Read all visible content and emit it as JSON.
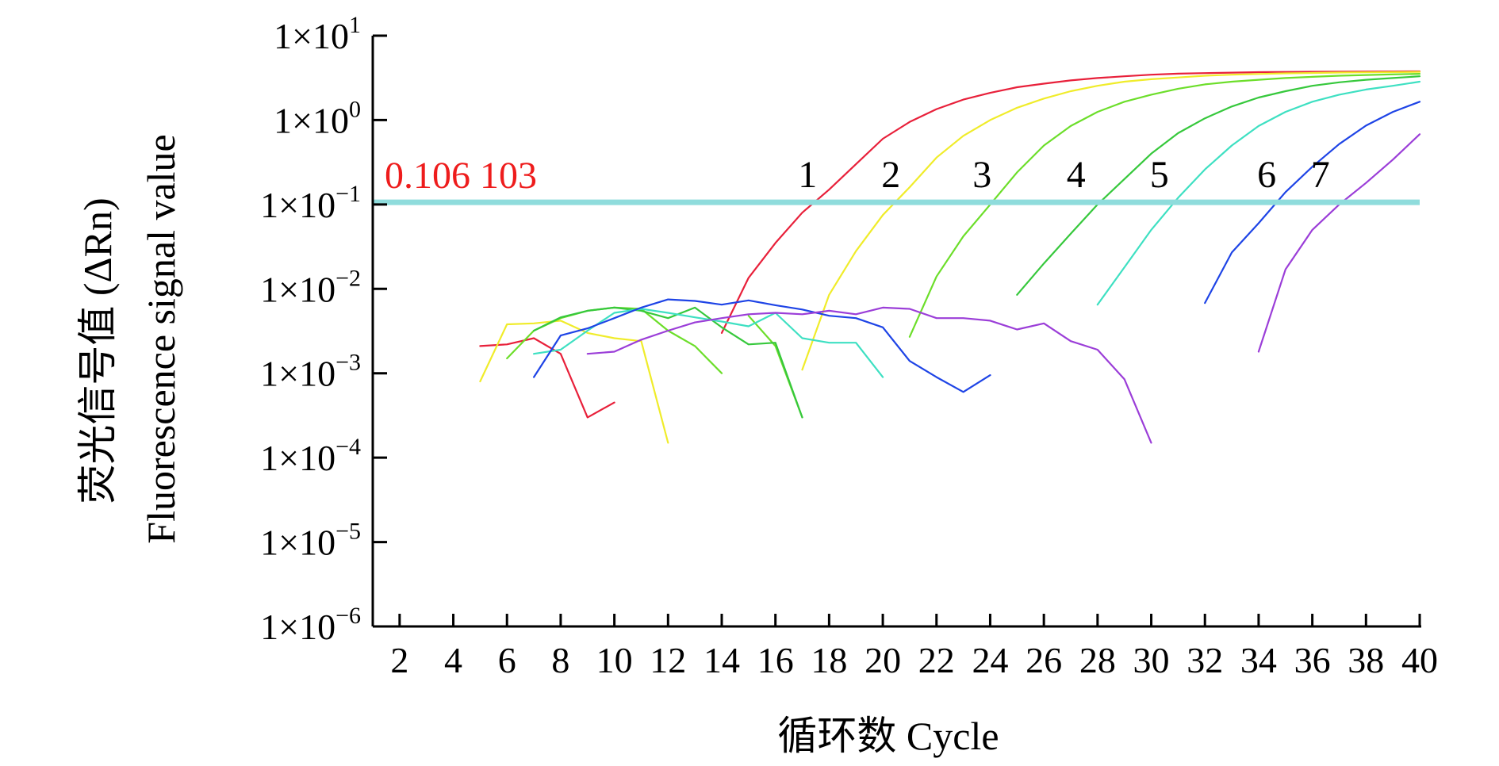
{
  "chart_data": {
    "type": "line",
    "xlabel": "循环数 Cycle",
    "ylabel_cn": "荧光信号值 (ΔRn)",
    "ylabel_en": "Fluorescence signal value",
    "x_ticks": [
      "2",
      "4",
      "6",
      "8",
      "10",
      "12",
      "14",
      "16",
      "18",
      "20",
      "22",
      "24",
      "26",
      "28",
      "30",
      "32",
      "34",
      "36",
      "38",
      "40"
    ],
    "xlim": [
      1,
      40
    ],
    "y_scale": "log",
    "ylim": [
      1e-06,
      10
    ],
    "y_ticks": [
      {
        "value": 10,
        "mantissa": "1×10",
        "exp": "1"
      },
      {
        "value": 1,
        "mantissa": "1×10",
        "exp": "0"
      },
      {
        "value": 0.1,
        "mantissa": "1×10",
        "exp": "−1"
      },
      {
        "value": 0.01,
        "mantissa": "1×10",
        "exp": "−2"
      },
      {
        "value": 0.001,
        "mantissa": "1×10",
        "exp": "−3"
      },
      {
        "value": 0.0001,
        "mantissa": "1×10",
        "exp": "−4"
      },
      {
        "value": 1e-05,
        "mantissa": "1×10",
        "exp": "−5"
      },
      {
        "value": 1e-06,
        "mantissa": "1×10",
        "exp": "−6"
      }
    ],
    "threshold": {
      "value": 0.106103,
      "label": "0.106 103",
      "color": "#8fdcdc",
      "label_color": "#ee1c1c"
    },
    "grid": false,
    "series": [
      {
        "label": "1",
        "color": "#e8203a",
        "x": [
          5,
          6,
          7,
          8,
          9,
          10,
          null,
          14,
          15,
          16,
          17,
          18,
          19,
          20,
          21,
          22,
          23,
          24,
          25,
          26,
          27,
          28,
          29,
          30,
          31,
          32,
          33,
          34,
          35,
          36,
          37,
          38,
          39,
          40
        ],
        "y": [
          0.0021,
          0.0022,
          0.0026,
          0.0017,
          0.0003,
          0.00045,
          null,
          0.003,
          0.0135,
          0.035,
          0.08,
          0.15,
          0.3,
          0.6,
          0.95,
          1.35,
          1.75,
          2.1,
          2.45,
          2.7,
          2.95,
          3.15,
          3.3,
          3.45,
          3.55,
          3.6,
          3.65,
          3.7,
          3.72,
          3.74,
          3.75,
          3.76,
          3.77,
          3.78
        ],
        "label_x": 17.2,
        "label_y": 0.16
      },
      {
        "label": "2",
        "color": "#f0ec2a",
        "x": [
          5,
          6,
          7,
          8,
          9,
          10,
          11,
          12,
          null,
          17,
          18,
          19,
          20,
          21,
          22,
          23,
          24,
          25,
          26,
          27,
          28,
          29,
          30,
          31,
          32,
          33,
          34,
          35,
          36,
          37,
          38,
          39,
          40
        ],
        "y": [
          0.0008,
          0.0038,
          0.0039,
          0.0042,
          0.003,
          0.0026,
          0.0024,
          0.00015,
          null,
          0.0011,
          0.0085,
          0.028,
          0.075,
          0.16,
          0.36,
          0.65,
          1.0,
          1.4,
          1.8,
          2.2,
          2.55,
          2.85,
          3.05,
          3.2,
          3.35,
          3.45,
          3.52,
          3.58,
          3.62,
          3.66,
          3.68,
          3.7,
          3.72
        ],
        "label_x": 20.3,
        "label_y": 0.16
      },
      {
        "label": "3",
        "color": "#6cde2a",
        "x": [
          6,
          7,
          8,
          9,
          10,
          11,
          12,
          13,
          14,
          null,
          15,
          16,
          17,
          null,
          21,
          22,
          23,
          24,
          25,
          26,
          27,
          28,
          29,
          30,
          31,
          32,
          33,
          34,
          35,
          36,
          37,
          38,
          39,
          40
        ],
        "y": [
          0.0015,
          0.0032,
          0.0045,
          0.0055,
          0.006,
          0.0058,
          0.0032,
          0.0021,
          0.001,
          null,
          0.0048,
          0.0021,
          0.0003,
          null,
          0.0027,
          0.014,
          0.042,
          0.1,
          0.24,
          0.5,
          0.85,
          1.25,
          1.65,
          2.0,
          2.35,
          2.65,
          2.85,
          3.0,
          3.15,
          3.25,
          3.35,
          3.42,
          3.48,
          3.53
        ],
        "label_x": 23.7,
        "label_y": 0.16
      },
      {
        "label": "4",
        "color": "#36c83c",
        "x": [
          7,
          8,
          9,
          10,
          11,
          12,
          13,
          14,
          15,
          16,
          17,
          null,
          25,
          26,
          27,
          28,
          29,
          30,
          31,
          32,
          33,
          34,
          35,
          36,
          37,
          38,
          39,
          40
        ],
        "y": [
          0.0032,
          0.0046,
          0.0055,
          0.006,
          0.0055,
          0.0045,
          0.006,
          0.0035,
          0.0022,
          0.0023,
          0.0003,
          null,
          0.0085,
          0.02,
          0.045,
          0.1,
          0.2,
          0.4,
          0.7,
          1.05,
          1.45,
          1.85,
          2.2,
          2.55,
          2.8,
          3.0,
          3.15,
          3.3
        ],
        "label_x": 27.2,
        "label_y": 0.16
      },
      {
        "label": "5",
        "color": "#3ee0c2",
        "x": [
          7,
          8,
          9,
          10,
          11,
          12,
          13,
          14,
          15,
          16,
          17,
          18,
          19,
          20,
          null,
          28,
          29,
          30,
          31,
          32,
          33,
          34,
          35,
          36,
          37,
          38,
          39,
          40
        ],
        "y": [
          0.0017,
          0.0019,
          0.0032,
          0.0052,
          0.0058,
          0.0052,
          0.0046,
          0.0041,
          0.0036,
          0.0052,
          0.0026,
          0.0023,
          0.0023,
          0.0009,
          null,
          0.0065,
          0.018,
          0.05,
          0.12,
          0.26,
          0.5,
          0.85,
          1.25,
          1.65,
          2.0,
          2.3,
          2.55,
          2.85
        ],
        "label_x": 30.3,
        "label_y": 0.16
      },
      {
        "label": "6",
        "color": "#1e44e6",
        "x": [
          7,
          8,
          9,
          10,
          11,
          12,
          13,
          14,
          15,
          16,
          17,
          18,
          19,
          20,
          21,
          22,
          23,
          24,
          null,
          32,
          33,
          34,
          35,
          36,
          37,
          38,
          39,
          40
        ],
        "y": [
          0.0009,
          0.0028,
          0.0034,
          0.0045,
          0.006,
          0.0075,
          0.0072,
          0.0065,
          0.0073,
          0.0064,
          0.0057,
          0.0048,
          0.0045,
          0.0035,
          0.0014,
          0.0009,
          0.0006,
          0.00095,
          null,
          0.0068,
          0.027,
          0.06,
          0.14,
          0.28,
          0.52,
          0.86,
          1.25,
          1.65
        ],
        "label_x": 34.3,
        "label_y": 0.16
      },
      {
        "label": "7",
        "color": "#9b3ed8",
        "x": [
          9,
          10,
          11,
          12,
          13,
          14,
          15,
          16,
          17,
          18,
          19,
          20,
          21,
          22,
          23,
          24,
          25,
          26,
          27,
          28,
          29,
          30,
          null,
          34,
          35,
          36,
          37,
          38,
          39,
          40
        ],
        "y": [
          0.0017,
          0.0018,
          0.0025,
          0.0032,
          0.004,
          0.0045,
          0.005,
          0.0052,
          0.005,
          0.0055,
          0.005,
          0.006,
          0.0058,
          0.0045,
          0.0045,
          0.0042,
          0.0033,
          0.0039,
          0.0024,
          0.0019,
          0.00085,
          0.00015,
          null,
          0.0018,
          0.017,
          0.05,
          0.1,
          0.18,
          0.34,
          0.68
        ],
        "label_x": 36.3,
        "label_y": 0.16
      }
    ]
  }
}
